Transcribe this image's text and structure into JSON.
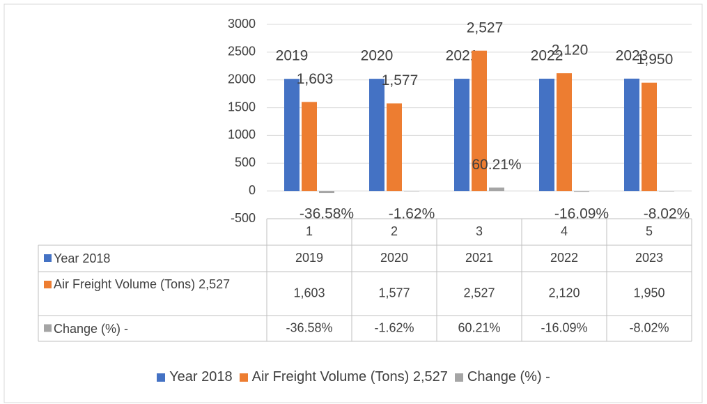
{
  "chart_data": {
    "type": "bar",
    "categories": [
      "1",
      "2",
      "3",
      "4",
      "5"
    ],
    "series": [
      {
        "name": "Year 2018",
        "color": "#4472c4",
        "values": [
          2019,
          2020,
          2021,
          2022,
          2023
        ]
      },
      {
        "name": "Air Freight Volume (Tons) 2,527",
        "color": "#ed7d31",
        "values": [
          1603,
          1577,
          2527,
          2120,
          1950
        ],
        "value_labels": [
          "1,603",
          "1,577",
          "2,527",
          "2,120",
          "1,950"
        ]
      },
      {
        "name": "Change (%) -",
        "color": "#a5a5a5",
        "values": [
          -36.58,
          -1.62,
          60.21,
          -16.09,
          -8.02
        ],
        "value_labels": [
          "-36.58%",
          "-1.62%",
          "60.21%",
          "-16.09%",
          "-8.02%"
        ]
      }
    ],
    "ylim": [
      -500,
      3000
    ],
    "yticks": [
      -500,
      0,
      500,
      1000,
      1500,
      2000,
      2500,
      3000
    ],
    "grid": true,
    "legend": "bottom",
    "data_table": true
  }
}
